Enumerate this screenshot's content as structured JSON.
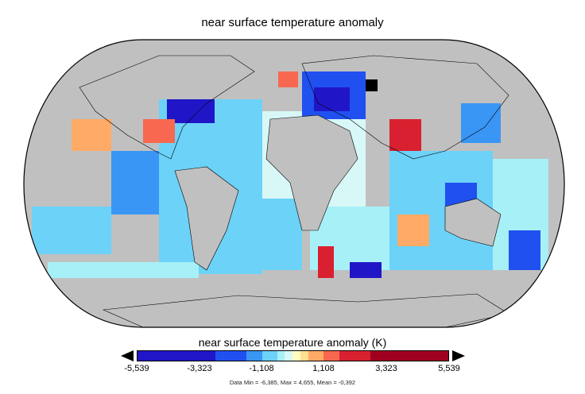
{
  "title": "near surface temperature anomaly",
  "colorbar": {
    "label": "near surface temperature anomaly (K)",
    "ticks": [
      "-5,539",
      "-3,323",
      "-1,108",
      "1,108",
      "3,323",
      "5,539"
    ],
    "colors": [
      "#2016c8",
      "#2050f0",
      "#3a96f5",
      "#6cd2f8",
      "#a8f0f8",
      "#d8f8f8",
      "#fffcc0",
      "#ffe090",
      "#ffaa66",
      "#f86850",
      "#d82030",
      "#a00020"
    ],
    "extend": "both"
  },
  "stats": "Data Min = -6,385, Max = 4,655, Mean = -0,392",
  "colors": {
    "missing": "#c0c0c0",
    "land_lines": "#000000"
  }
}
